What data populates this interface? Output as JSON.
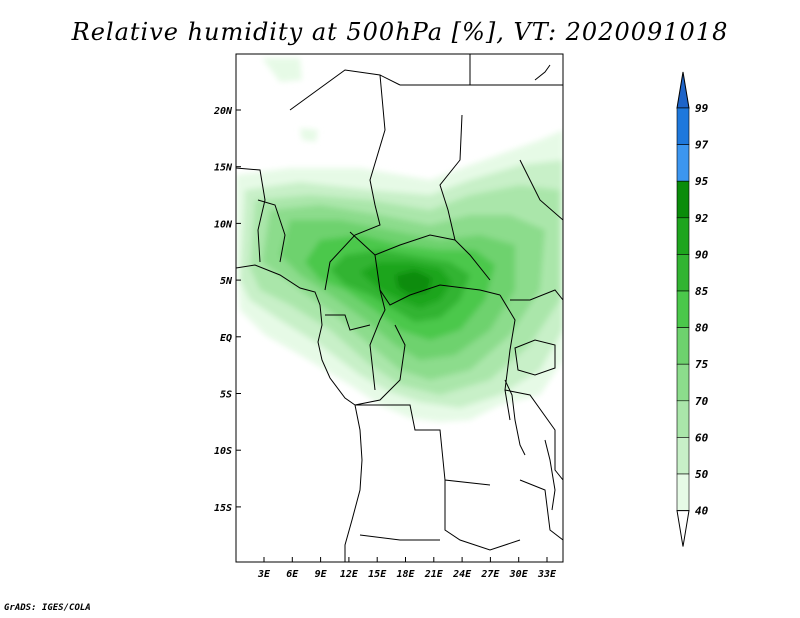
{
  "title": "Relative humidity at 500hPa [%], VT: 2020091018",
  "credit": "GrADS: IGES/COLA",
  "map": {
    "lat_labels": [
      "20N",
      "15N",
      "10N",
      "5N",
      "EQ",
      "5S",
      "10S",
      "15S"
    ],
    "lon_labels": [
      "3E",
      "6E",
      "9E",
      "12E",
      "15E",
      "18E",
      "21E",
      "24E",
      "27E",
      "30E",
      "33E"
    ]
  },
  "colorbar": {
    "labels": [
      "99",
      "97",
      "95",
      "92",
      "90",
      "85",
      "80",
      "75",
      "70",
      "60",
      "50",
      "40"
    ],
    "colors": [
      "#1e64c8",
      "#1e78dc",
      "#3c96f0",
      "#0a8c0a",
      "#1ea51e",
      "#32b432",
      "#4bc84b",
      "#6ed26e",
      "#8cdc8c",
      "#aae6aa",
      "#c8f0c8",
      "#e6fae6"
    ]
  }
}
